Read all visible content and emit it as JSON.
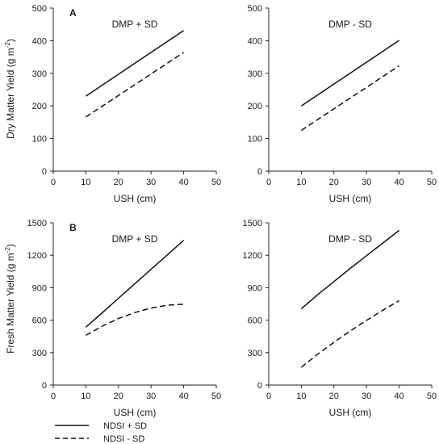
{
  "row_labels": [
    "A",
    "B"
  ],
  "y_axis_titles": [
    "Dry Matter Yield (g m",
    "Fresh Matter Yield (g m"
  ],
  "y_axis_unit_superscript": "-2",
  "y_axis_unit_close": ")",
  "legend": [
    {
      "label": "NDSI + SD",
      "dash": "solid"
    },
    {
      "label": "NDSI - SD",
      "dash": "dashed"
    }
  ],
  "chart_data": [
    {
      "type": "line",
      "row_label": "A",
      "title": "DMP + SD",
      "xlabel": "USH (cm)",
      "ylabel": "Dry Matter Yield (g m-2)",
      "xlim": [
        0,
        50
      ],
      "ylim": [
        0,
        500
      ],
      "xticks": [
        0,
        10,
        20,
        30,
        40,
        50
      ],
      "yticks": [
        0,
        100,
        200,
        300,
        400,
        500
      ],
      "series": [
        {
          "name": "NDSI + SD",
          "x": [
            10,
            20,
            30,
            40
          ],
          "y": [
            230,
            297,
            364,
            431
          ]
        },
        {
          "name": "NDSI - SD",
          "x": [
            10,
            20,
            30,
            40
          ],
          "y": [
            166,
            232,
            298,
            364
          ]
        }
      ]
    },
    {
      "type": "line",
      "row_label": "",
      "title": "DMP - SD",
      "xlabel": "USH (cm)",
      "ylabel": "",
      "xlim": [
        0,
        50
      ],
      "ylim": [
        0,
        500
      ],
      "xticks": [
        0,
        10,
        20,
        30,
        40,
        50
      ],
      "yticks": [
        0,
        100,
        200,
        300,
        400,
        500
      ],
      "series": [
        {
          "name": "NDSI + SD",
          "x": [
            10,
            20,
            30,
            40
          ],
          "y": [
            200,
            267,
            334,
            401
          ]
        },
        {
          "name": "NDSI - SD",
          "x": [
            10,
            20,
            30,
            40
          ],
          "y": [
            125,
            191,
            257,
            323
          ]
        }
      ]
    },
    {
      "type": "line",
      "row_label": "B",
      "title": "DMP + SD",
      "xlabel": "USH (cm)",
      "ylabel": "Fresh Matter Yield (g m-2)",
      "xlim": [
        0,
        50
      ],
      "ylim": [
        0,
        1500
      ],
      "xticks": [
        0,
        10,
        20,
        30,
        40,
        50
      ],
      "yticks": [
        0,
        300,
        600,
        900,
        1200,
        1500
      ],
      "series": [
        {
          "name": "NDSI + SD",
          "x": [
            10,
            15,
            20,
            25,
            30,
            35,
            40
          ],
          "y": [
            535,
            668,
            802,
            936,
            1070,
            1204,
            1338
          ]
        },
        {
          "name": "NDSI - SD",
          "x": [
            10,
            15,
            20,
            25,
            30,
            35,
            40
          ],
          "y": [
            460,
            545,
            615,
            670,
            712,
            738,
            748
          ]
        }
      ]
    },
    {
      "type": "line",
      "row_label": "",
      "title": "DMP - SD",
      "xlabel": "USH (cm)",
      "ylabel": "",
      "xlim": [
        0,
        50
      ],
      "ylim": [
        0,
        1500
      ],
      "xticks": [
        0,
        10,
        20,
        30,
        40,
        50
      ],
      "yticks": [
        0,
        300,
        600,
        900,
        1200,
        1500
      ],
      "series": [
        {
          "name": "NDSI + SD",
          "x": [
            10,
            15,
            20,
            25,
            30,
            35,
            40
          ],
          "y": [
            705,
            835,
            957,
            1078,
            1196,
            1313,
            1430
          ]
        },
        {
          "name": "NDSI - SD",
          "x": [
            10,
            15,
            20,
            25,
            30,
            35,
            40
          ],
          "y": [
            165,
            285,
            395,
            500,
            598,
            692,
            780
          ]
        }
      ]
    }
  ]
}
